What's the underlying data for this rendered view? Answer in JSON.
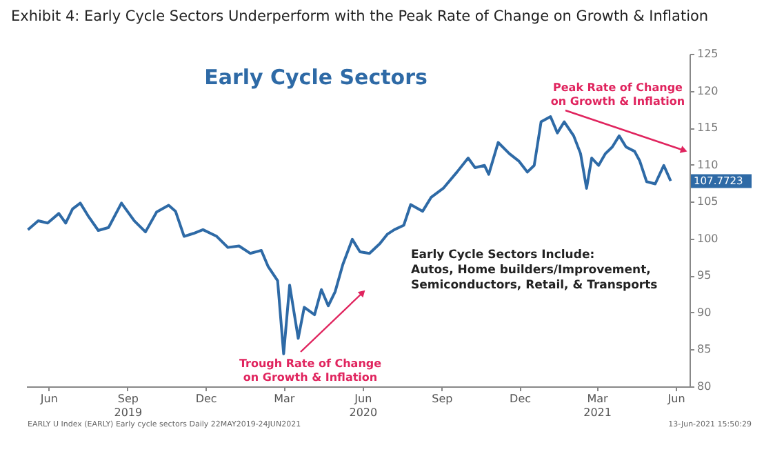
{
  "chart_data": {
    "type": "line",
    "title": "Exhibit 4: Early Cycle Sectors Underperform with the Peak Rate of Change on Growth & Inflation",
    "x": [
      "2019-05-22",
      "2019-06-03",
      "2019-06-14",
      "2019-06-27",
      "2019-07-05",
      "2019-07-13",
      "2019-07-22",
      "2019-07-31",
      "2019-08-12",
      "2019-08-24",
      "2019-09-08",
      "2019-09-23",
      "2019-10-06",
      "2019-10-19",
      "2019-11-02",
      "2019-11-10",
      "2019-11-20",
      "2019-12-01",
      "2019-12-12",
      "2019-12-28",
      "2020-01-10",
      "2020-01-23",
      "2020-02-05",
      "2020-02-18",
      "2020-02-26",
      "2020-03-08",
      "2020-03-15",
      "2020-03-22",
      "2020-04-01",
      "2020-04-08",
      "2020-04-20",
      "2020-04-28",
      "2020-05-06",
      "2020-05-14",
      "2020-05-23",
      "2020-06-03",
      "2020-06-12",
      "2020-06-23",
      "2020-07-05",
      "2020-07-14",
      "2020-07-22",
      "2020-08-02",
      "2020-08-10",
      "2020-08-24",
      "2020-09-03",
      "2020-09-17",
      "2020-10-03",
      "2020-10-16",
      "2020-10-24",
      "2020-11-04",
      "2020-11-09",
      "2020-11-20",
      "2020-12-03",
      "2020-12-14",
      "2020-12-24",
      "2021-01-01",
      "2021-01-09",
      "2021-01-20",
      "2021-01-28",
      "2021-02-05",
      "2021-02-16",
      "2021-02-24",
      "2021-03-03",
      "2021-03-09",
      "2021-03-17",
      "2021-03-25",
      "2021-04-02",
      "2021-04-10",
      "2021-04-18",
      "2021-04-28",
      "2021-05-04",
      "2021-05-12",
      "2021-05-22",
      "2021-06-01",
      "2021-06-09"
    ],
    "series": [
      {
        "color": "#2e6aa6",
        "values": [
          101.2,
          102.4,
          102.1,
          103.4,
          102.1,
          104.0,
          104.8,
          103.1,
          101.1,
          101.5,
          104.8,
          102.4,
          100.9,
          103.6,
          104.5,
          103.7,
          100.3,
          100.7,
          101.2,
          100.3,
          98.8,
          99.0,
          98.0,
          98.4,
          96.2,
          94.3,
          84.4,
          93.7,
          86.5,
          90.7,
          89.7,
          93.1,
          90.9,
          92.8,
          96.5,
          99.9,
          98.2,
          98.0,
          99.3,
          100.6,
          101.2,
          101.8,
          104.6,
          103.7,
          105.6,
          106.8,
          109.0,
          110.9,
          109.6,
          109.9,
          108.7,
          113.0,
          111.5,
          110.5,
          109.0,
          109.9,
          115.8,
          116.5,
          114.3,
          115.8,
          113.9,
          111.5,
          106.8,
          110.9,
          109.9,
          111.5,
          112.4,
          113.9,
          112.4,
          111.8,
          110.5,
          107.7,
          107.4,
          109.9,
          107.8
        ]
      }
    ],
    "xlim": [
      "2019-05-20",
      "2021-07-01"
    ],
    "xticks": [
      {
        "value": "2019-06-15",
        "label": "Jun"
      },
      {
        "value": "2019-09-15",
        "label": "Sep\n2019"
      },
      {
        "value": "2019-12-15",
        "label": "Dec"
      },
      {
        "value": "2020-03-15",
        "label": "Mar"
      },
      {
        "value": "2020-06-15",
        "label": "Jun\n2020"
      },
      {
        "value": "2020-09-15",
        "label": "Sep"
      },
      {
        "value": "2020-12-15",
        "label": "Dec"
      },
      {
        "value": "2021-03-15",
        "label": "Mar\n2021"
      },
      {
        "value": "2021-06-15",
        "label": "Jun"
      }
    ],
    "ylim": [
      80,
      125
    ],
    "yticks": [
      80,
      85,
      90,
      95,
      100,
      105,
      110,
      115,
      120,
      125
    ],
    "annotations": [
      "Early Cycle Sectors",
      "Early Cycle Sectors Include:\nAutos, Home builders/Improvement,\nSemiconductors, Retail, & Transports",
      "Trough Rate of Change\non Growth & Inflation",
      "Peak Rate of Change\non Growth & Inflation",
      {
        "text": "107.7723",
        "x": "2021-06-09",
        "y": 107.7723
      },
      "EARLY U Index (EARLY) Early cycle sectors Daily 22MAY2019-24JUN2021",
      "13-Jun-2021 15:50:29"
    ]
  }
}
